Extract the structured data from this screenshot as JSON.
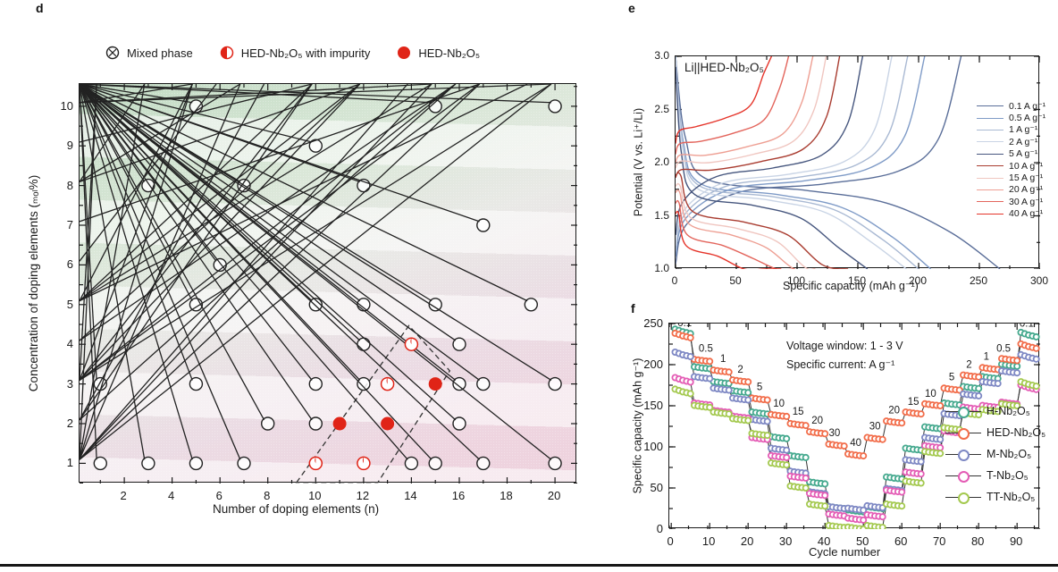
{
  "panels": {
    "d": {
      "panel_label": "d",
      "legend": [
        {
          "label": "Mixed phase"
        },
        {
          "label": "HED-Nb₂O₅ with impurity"
        },
        {
          "label": "HED-Nb₂O₅"
        }
      ],
      "xlabel": "Number of doping elements (n)",
      "ylabel": "Concentration of doping elements (ₘₒₗ%)"
    },
    "e": {
      "panel_label": "e",
      "title": "Li||HED-Nb₂O₅",
      "xlabel": "Specific capacity (mAh g⁻¹)",
      "ylabel": "Potential (V vs. Li⁺/Li)"
    },
    "f": {
      "panel_label": "f",
      "annotation_line1": "Voltage window: 1 - 3 V",
      "annotation_line2": "Specific current: A g⁻¹",
      "xlabel": "Cycle number",
      "ylabel": "Specific capacity (mAh g⁻¹)"
    }
  },
  "chart_data": [
    {
      "panel": "d",
      "type": "scatter",
      "xlabel": "Number of doping elements (n)",
      "ylabel": "Concentration of doping elements (mol%)",
      "xlim": [
        0.13,
        20.93
      ],
      "ylim": [
        0.49,
        10.56
      ],
      "x_major_ticks": [
        2,
        4,
        6,
        8,
        10,
        12,
        14,
        16,
        18,
        20
      ],
      "x_minor_ticks": [
        1,
        3,
        5,
        7,
        9,
        11,
        13,
        15,
        17,
        19,
        21
      ],
      "y_major_ticks": [
        1,
        2,
        3,
        4,
        5,
        6,
        7,
        8,
        9,
        10
      ],
      "y_minor_ticks": [
        0.5,
        1.5,
        2.5,
        3.5,
        4.5,
        5.5,
        6.5,
        7.5,
        8.5,
        9.5,
        10.5
      ],
      "marker_red": "#e02417",
      "marker_black": "#222222",
      "series": [
        {
          "name": "Mixed phase",
          "marker": "circle-x",
          "points": [
            [
              5,
              10
            ],
            [
              15,
              10
            ],
            [
              20,
              10
            ],
            [
              10,
              9
            ],
            [
              3,
              8
            ],
            [
              7,
              8
            ],
            [
              12,
              8
            ],
            [
              17,
              7
            ],
            [
              6,
              6
            ],
            [
              5,
              5
            ],
            [
              10,
              5
            ],
            [
              12,
              5
            ],
            [
              15,
              5
            ],
            [
              19,
              5
            ],
            [
              12,
              4
            ],
            [
              16,
              4
            ],
            [
              1,
              3
            ],
            [
              5,
              3
            ],
            [
              10,
              3
            ],
            [
              12,
              3
            ],
            [
              16,
              3
            ],
            [
              17,
              3
            ],
            [
              20,
              3
            ],
            [
              8,
              2
            ],
            [
              10,
              2
            ],
            [
              16,
              2
            ],
            [
              1,
              1
            ],
            [
              3,
              1
            ],
            [
              5,
              1
            ],
            [
              7,
              1
            ],
            [
              14,
              1
            ],
            [
              15,
              1
            ],
            [
              17,
              1
            ],
            [
              20,
              1
            ]
          ]
        },
        {
          "name": "HED-Nb₂O₅ with impurity",
          "marker": "half-filled-circle",
          "points": [
            [
              14,
              4
            ],
            [
              13,
              3
            ],
            [
              10,
              1
            ],
            [
              12,
              1
            ]
          ]
        },
        {
          "name": "HED-Nb₂O₅",
          "marker": "filled-circle",
          "points": [
            [
              15,
              3
            ],
            [
              11,
              2
            ],
            [
              13,
              2
            ]
          ]
        }
      ],
      "dashed_region": [
        [
          9.2,
          0.52
        ],
        [
          13.9,
          4.47
        ],
        [
          15.6,
          3.33
        ],
        [
          12.6,
          0.52
        ]
      ]
    },
    {
      "panel": "e",
      "type": "line",
      "title": "Li||HED-Nb₂O₅",
      "xlabel": "Specific capacity (mAh g⁻¹)",
      "ylabel": "Potential (V vs. Li⁺/Li)",
      "xlim": [
        0,
        300
      ],
      "ylim": [
        1.0,
        3.0
      ],
      "x_major_ticks": [
        0,
        50,
        100,
        150,
        200,
        250,
        300
      ],
      "x_minor_step": 25,
      "y_major_ticks": [
        1.0,
        1.5,
        2.0,
        2.5,
        3.0
      ],
      "y_minor_step": 0.25,
      "legend_position": "right",
      "series": [
        {
          "name": "0.1 A g⁻¹",
          "color": "#5a6e99",
          "discharge_start_v": 3.0,
          "discharge_plateau_v": 1.74,
          "discharge_capacity": 267,
          "charge_start_v": 1.05,
          "charge_plateau_v": 1.8,
          "charge_capacity": 235
        },
        {
          "name": "0.5 A g⁻¹",
          "color": "#7f9bc7",
          "discharge_start_v": 3.0,
          "discharge_plateau_v": 1.7,
          "discharge_capacity": 210,
          "charge_start_v": 1.12,
          "charge_plateau_v": 1.83,
          "charge_capacity": 205
        },
        {
          "name": "1 A g⁻¹",
          "color": "#a9b9d3",
          "discharge_start_v": 3.0,
          "discharge_plateau_v": 1.68,
          "discharge_capacity": 200,
          "charge_start_v": 1.17,
          "charge_plateau_v": 1.86,
          "charge_capacity": 191
        },
        {
          "name": "2 A g⁻¹",
          "color": "#c9d4e5",
          "discharge_start_v": 2.98,
          "discharge_plateau_v": 1.65,
          "discharge_capacity": 190,
          "charge_start_v": 1.22,
          "charge_plateau_v": 1.89,
          "charge_capacity": 178
        },
        {
          "name": "5 A g⁻¹",
          "color": "#46567e",
          "discharge_start_v": 2.9,
          "discharge_plateau_v": 1.6,
          "discharge_capacity": 158,
          "charge_start_v": 1.32,
          "charge_plateau_v": 1.95,
          "charge_capacity": 154
        },
        {
          "name": "10 A g⁻¹",
          "color": "#a93c30",
          "discharge_start_v": 1.88,
          "discharge_plateau_v": 1.44,
          "discharge_capacity": 142,
          "charge_start_v": 1.86,
          "charge_plateau_v": 2.01,
          "charge_capacity": 135
        },
        {
          "name": "15 A g⁻¹",
          "color": "#f0c6c0",
          "discharge_start_v": 1.78,
          "discharge_plateau_v": 1.38,
          "discharge_capacity": 128,
          "charge_start_v": 1.95,
          "charge_plateau_v": 2.08,
          "charge_capacity": 124
        },
        {
          "name": "20 A g⁻¹",
          "color": "#ee9f93",
          "discharge_start_v": 1.72,
          "discharge_plateau_v": 1.32,
          "discharge_capacity": 115,
          "charge_start_v": 2.0,
          "charge_plateau_v": 2.15,
          "charge_capacity": 113
        },
        {
          "name": "30 A g⁻¹",
          "color": "#e3655c",
          "discharge_start_v": 1.62,
          "discharge_plateau_v": 1.22,
          "discharge_capacity": 98,
          "charge_start_v": 2.08,
          "charge_plateau_v": 2.28,
          "charge_capacity": 93
        },
        {
          "name": "40 A g⁻¹",
          "color": "#e5342a",
          "discharge_start_v": 1.52,
          "discharge_plateau_v": 1.12,
          "discharge_capacity": 87,
          "charge_start_v": 2.18,
          "charge_plateau_v": 2.42,
          "charge_capacity": 79
        }
      ]
    },
    {
      "panel": "f",
      "type": "scatter-line",
      "xlabel": "Cycle number",
      "ylabel": "Specific capacity (mAh g⁻¹)",
      "xlim": [
        -0.5,
        96
      ],
      "ylim": [
        0,
        250
      ],
      "x_major_ticks": [
        0,
        10,
        20,
        30,
        40,
        50,
        60,
        70,
        80,
        90
      ],
      "x_minor_step": 5,
      "y_major_ticks": [
        0,
        50,
        100,
        150,
        200,
        250
      ],
      "y_minor_step": 25,
      "cycles_per_step": 5,
      "rate_sequence": [
        0.1,
        0.5,
        1,
        2,
        5,
        10,
        15,
        20,
        30,
        40,
        30,
        20,
        15,
        10,
        5,
        2,
        1,
        0.5,
        0.1
      ],
      "rate_labels": [
        {
          "text": "0.1",
          "cycle": 3.5,
          "value": 247
        },
        {
          "text": "0.5",
          "cycle": 9,
          "value": 216
        },
        {
          "text": "1",
          "cycle": 13.5,
          "value": 203
        },
        {
          "text": "2",
          "cycle": 18,
          "value": 190
        },
        {
          "text": "5",
          "cycle": 23,
          "value": 169
        },
        {
          "text": "10",
          "cycle": 28,
          "value": 149
        },
        {
          "text": "15",
          "cycle": 33,
          "value": 139
        },
        {
          "text": "20",
          "cycle": 38,
          "value": 128
        },
        {
          "text": "30",
          "cycle": 42.5,
          "value": 113
        },
        {
          "text": "40",
          "cycle": 48,
          "value": 101
        },
        {
          "text": "30",
          "cycle": 53,
          "value": 121
        },
        {
          "text": "20",
          "cycle": 58,
          "value": 141
        },
        {
          "text": "15",
          "cycle": 63,
          "value": 151
        },
        {
          "text": "10",
          "cycle": 67.5,
          "value": 161
        },
        {
          "text": "5",
          "cycle": 73,
          "value": 181
        },
        {
          "text": "2",
          "cycle": 77.5,
          "value": 196
        },
        {
          "text": "1",
          "cycle": 82,
          "value": 206
        },
        {
          "text": "0.5",
          "cycle": 86.5,
          "value": 216
        },
        {
          "text": "0.1",
          "cycle": 92.5,
          "value": 246
        }
      ],
      "series": [
        {
          "name": "H-Nb₂O₅",
          "color": "#45a98e",
          "step_values": [
            240,
            196,
            178,
            167,
            141,
            111,
            88,
            56,
            26,
            22,
            26,
            62,
            97,
            123,
            152,
            172,
            184,
            199,
            236
          ]
        },
        {
          "name": "HED-Nb₂O₅",
          "color": "#f26d4a",
          "step_values": [
            235,
            205,
            192,
            180,
            158,
            138,
            127,
            117,
            102,
            90,
            110,
            130,
            141,
            151,
            170,
            186,
            195,
            206,
            222
          ]
        },
        {
          "name": "M-Nb₂O₅",
          "color": "#7e88c4",
          "step_values": [
            212,
            184,
            170,
            158,
            132,
            97,
            69,
            44,
            26,
            24,
            27,
            48,
            83,
            110,
            139,
            163,
            178,
            191,
            209
          ]
        },
        {
          "name": "T-Nb₂O₅",
          "color": "#e45cb5",
          "step_values": [
            181,
            152,
            143,
            136,
            110,
            88,
            63,
            42,
            17,
            12,
            16,
            46,
            68,
            100,
            118,
            147,
            149,
            153,
            172
          ]
        },
        {
          "name": "TT-Nb₂O₅",
          "color": "#a4c94f",
          "step_values": [
            167,
            149,
            141,
            133,
            115,
            79,
            51,
            29,
            3,
            1,
            3,
            29,
            57,
            93,
            122,
            140,
            144,
            151,
            176
          ]
        }
      ]
    }
  ]
}
